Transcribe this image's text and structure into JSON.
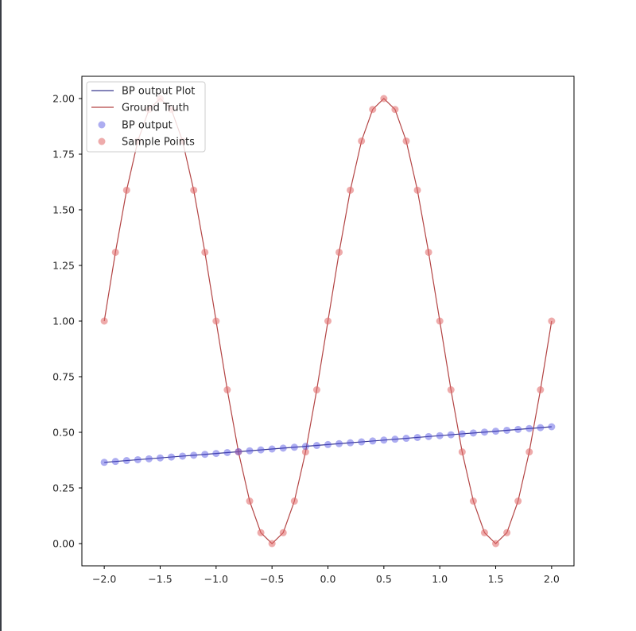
{
  "chart_data": {
    "type": "line",
    "title": "",
    "xlabel": "",
    "ylabel": "",
    "xlim": [
      -2.2,
      2.2
    ],
    "ylim": [
      -0.1,
      2.1
    ],
    "xticks": [
      -2.0,
      -1.5,
      -1.0,
      -0.5,
      0.0,
      0.5,
      1.0,
      1.5,
      2.0
    ],
    "xtick_labels": [
      "−2.0",
      "−1.5",
      "−1.0",
      "−0.5",
      "0.0",
      "0.5",
      "1.0",
      "1.5",
      "2.0"
    ],
    "yticks": [
      0.0,
      0.25,
      0.5,
      0.75,
      1.0,
      1.25,
      1.5,
      1.75,
      2.0
    ],
    "ytick_labels": [
      "0.00",
      "0.25",
      "0.50",
      "0.75",
      "1.00",
      "1.25",
      "1.50",
      "1.75",
      "2.00"
    ],
    "grid": false,
    "legend_position": "top-left",
    "x": [
      -2.0,
      -1.9,
      -1.8,
      -1.7,
      -1.6,
      -1.5,
      -1.4,
      -1.3,
      -1.2,
      -1.1,
      -1.0,
      -0.9,
      -0.8,
      -0.7,
      -0.6,
      -0.5,
      -0.4,
      -0.3,
      -0.2,
      -0.1,
      0.0,
      0.1,
      0.2,
      0.3,
      0.4,
      0.5,
      0.6,
      0.7,
      0.8,
      0.9,
      1.0,
      1.1,
      1.2,
      1.3,
      1.4,
      1.5,
      1.6,
      1.7,
      1.8,
      1.9,
      2.0
    ],
    "series": [
      {
        "name": "BP output Plot",
        "kind": "line",
        "color": "#3b3b8f",
        "values": [
          0.365,
          0.369,
          0.373,
          0.377,
          0.381,
          0.385,
          0.389,
          0.393,
          0.397,
          0.401,
          0.405,
          0.409,
          0.413,
          0.417,
          0.421,
          0.425,
          0.429,
          0.433,
          0.437,
          0.441,
          0.445,
          0.449,
          0.453,
          0.457,
          0.461,
          0.465,
          0.469,
          0.473,
          0.477,
          0.481,
          0.485,
          0.489,
          0.493,
          0.497,
          0.501,
          0.505,
          0.509,
          0.513,
          0.517,
          0.521,
          0.525
        ]
      },
      {
        "name": "Ground Truth",
        "kind": "line",
        "color": "#b34444",
        "values": [
          1.0,
          1.309,
          1.588,
          1.809,
          1.951,
          2.0,
          1.951,
          1.809,
          1.588,
          1.309,
          1.0,
          0.691,
          0.412,
          0.191,
          0.049,
          0.0,
          0.049,
          0.191,
          0.412,
          0.691,
          1.0,
          1.309,
          1.588,
          1.809,
          1.951,
          2.0,
          1.951,
          1.809,
          1.588,
          1.309,
          1.0,
          0.691,
          0.412,
          0.191,
          0.049,
          0.0,
          0.049,
          0.191,
          0.412,
          0.691,
          1.0
        ]
      },
      {
        "name": "BP output",
        "kind": "scatter",
        "color": "#4a4ae0",
        "source": "BP output Plot"
      },
      {
        "name": "Sample Points",
        "kind": "scatter",
        "color": "#e06666",
        "source": "Ground Truth"
      }
    ]
  }
}
